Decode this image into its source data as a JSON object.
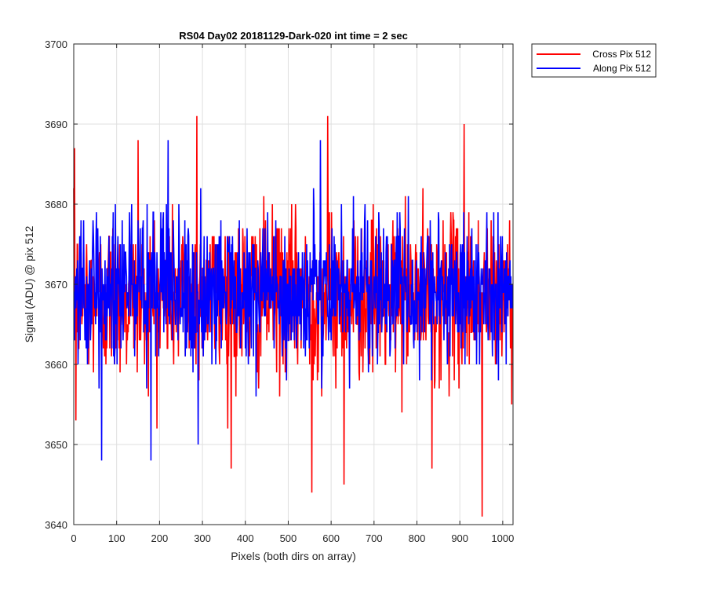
{
  "chart_data": {
    "type": "line",
    "title": "RS04 Day02 20181129-Dark-020 int time = 2 sec",
    "xlabel": "Pixels (both dirs on array)",
    "ylabel": "Signal (ADU) @ pix 512",
    "xlim": [
      0,
      1024
    ],
    "ylim": [
      3640,
      3700
    ],
    "xticks": [
      0,
      100,
      200,
      300,
      400,
      500,
      600,
      700,
      800,
      900,
      1000
    ],
    "yticks": [
      3640,
      3650,
      3660,
      3670,
      3680,
      3690,
      3700
    ],
    "grid": true,
    "legend_position": "outside-top-right",
    "series": [
      {
        "name": "Cross Pix 512",
        "color": "#ff0000",
        "mean": 3668.5,
        "std": 5,
        "num_points": 1024,
        "notable_points": [
          {
            "x": 2,
            "y": 3687
          },
          {
            "x": 5,
            "y": 3653
          },
          {
            "x": 150,
            "y": 3688
          },
          {
            "x": 287,
            "y": 3691
          },
          {
            "x": 367,
            "y": 3647
          },
          {
            "x": 555,
            "y": 3644
          },
          {
            "x": 592,
            "y": 3691
          },
          {
            "x": 630,
            "y": 3645
          },
          {
            "x": 835,
            "y": 3647
          },
          {
            "x": 910,
            "y": 3690
          },
          {
            "x": 952,
            "y": 3641
          }
        ]
      },
      {
        "name": "Along Pix 512",
        "color": "#0000ff",
        "mean": 3669,
        "std": 4.5,
        "num_points": 1024,
        "notable_points": [
          {
            "x": 65,
            "y": 3648
          },
          {
            "x": 180,
            "y": 3648
          },
          {
            "x": 220,
            "y": 3688
          },
          {
            "x": 290,
            "y": 3650
          },
          {
            "x": 575,
            "y": 3688
          }
        ]
      }
    ]
  }
}
